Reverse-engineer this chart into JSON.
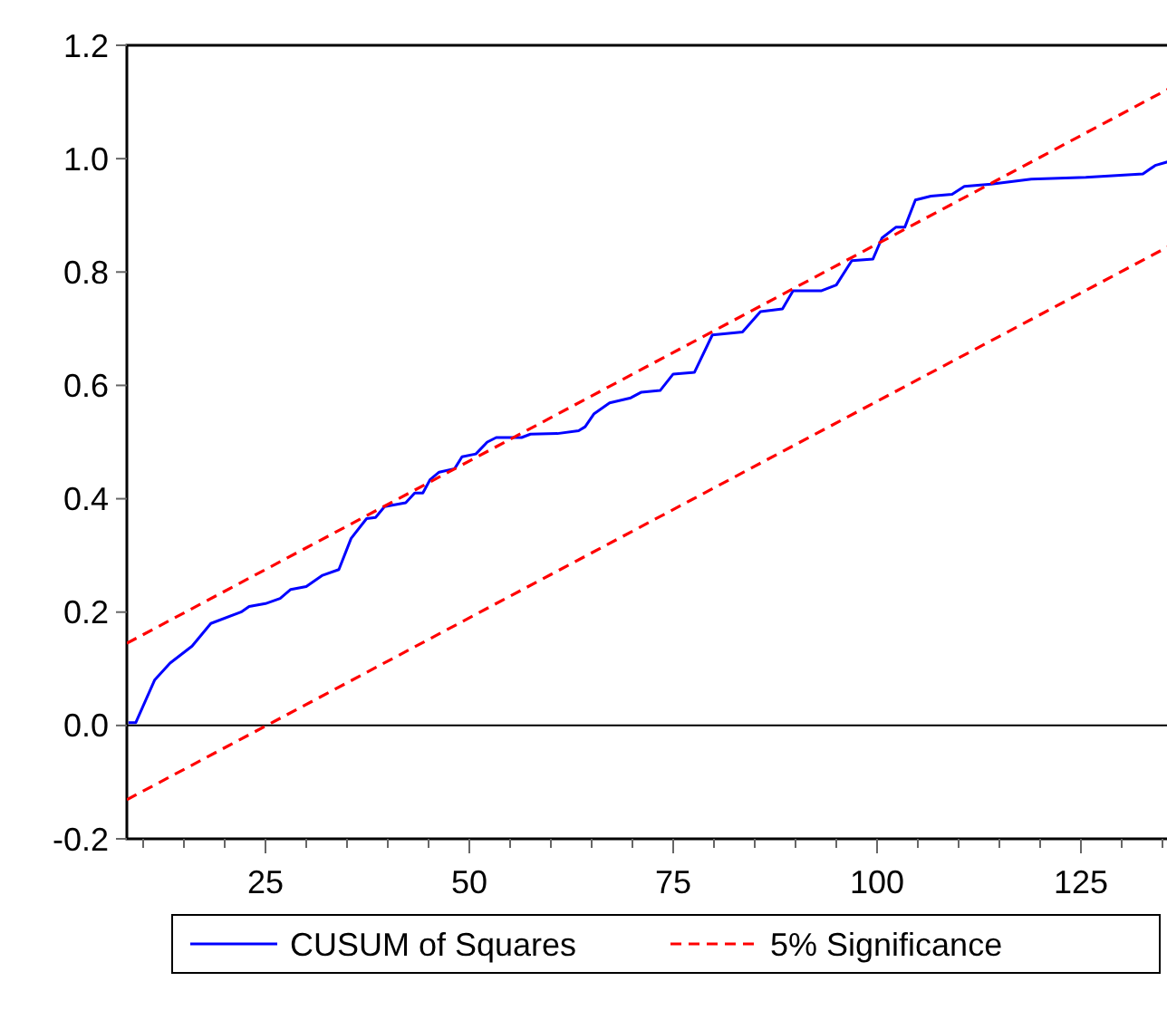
{
  "chart_data": {
    "type": "line",
    "xlim": [
      8,
      136
    ],
    "ylim": [
      -0.2,
      1.2
    ],
    "xticks": [
      {
        "value": 10,
        "label": null
      },
      {
        "value": 15,
        "label": null
      },
      {
        "value": 20,
        "label": null
      },
      25,
      {
        "value": 30,
        "label": null
      },
      {
        "value": 35,
        "label": null
      },
      {
        "value": 40,
        "label": null
      },
      {
        "value": 45,
        "label": null
      },
      50,
      {
        "value": 55,
        "label": null
      },
      {
        "value": 60,
        "label": null
      },
      {
        "value": 65,
        "label": null
      },
      {
        "value": 70,
        "label": null
      },
      75,
      {
        "value": 80,
        "label": null
      },
      {
        "value": 85,
        "label": null
      },
      {
        "value": 90,
        "label": null
      },
      {
        "value": 95,
        "label": null
      },
      100,
      {
        "value": 105,
        "label": null
      },
      {
        "value": 110,
        "label": null
      },
      {
        "value": 115,
        "label": null
      },
      {
        "value": 120,
        "label": null
      },
      125,
      {
        "value": 130,
        "label": null
      },
      {
        "value": 135,
        "label": null
      }
    ],
    "yticks": [
      {
        "value": -0.2,
        "label": "-0.2"
      },
      {
        "value": 0,
        "label": "0.0"
      },
      {
        "value": 0.2,
        "label": "0.2"
      },
      {
        "value": 0.4,
        "label": "0.4"
      },
      {
        "value": 0.6,
        "label": "0.6"
      },
      {
        "value": 0.8,
        "label": "0.8"
      },
      {
        "value": 1,
        "label": "1.0"
      },
      {
        "value": 1.2,
        "label": "1.2"
      }
    ],
    "grid": false,
    "legend": "bottom",
    "marker": "none",
    "ref_lines": [
      {
        "axis": "y",
        "value": 0,
        "color": "#000000"
      }
    ],
    "series": [
      {
        "name": "CUSUM of Squares",
        "color": "#0000ff",
        "line_style": "solid",
        "x": [
          8.2,
          9.1,
          11.4,
          13.3,
          16,
          18.3,
          22,
          23,
          25,
          26.8,
          28.1,
          30,
          32,
          34,
          35.5,
          37.4,
          38.5,
          39.6,
          42.2,
          43.3,
          44.3,
          45.2,
          46.3,
          48.2,
          49.1,
          50.8,
          52.2,
          53.3,
          56.4,
          57.5,
          60.8,
          63.4,
          64.2,
          65.3,
          67.2,
          69.8,
          71.1,
          73.4,
          75,
          77.6,
          79.8,
          83.5,
          85.7,
          88.4,
          89.7,
          93.2,
          95,
          96.9,
          99.5,
          100.6,
          102.3,
          103.4,
          104.7,
          106.6,
          109.2,
          110.7,
          114,
          118.9,
          125.6,
          132.6,
          134.1,
          136
        ],
        "values": [
          0.005,
          0.005,
          0.08,
          0.11,
          0.14,
          0.18,
          0.2,
          0.21,
          0.215,
          0.224,
          0.24,
          0.245,
          0.265,
          0.275,
          0.33,
          0.365,
          0.367,
          0.386,
          0.393,
          0.41,
          0.41,
          0.434,
          0.447,
          0.453,
          0.474,
          0.479,
          0.5,
          0.508,
          0.508,
          0.514,
          0.515,
          0.52,
          0.527,
          0.55,
          0.569,
          0.578,
          0.588,
          0.591,
          0.62,
          0.623,
          0.689,
          0.694,
          0.73,
          0.735,
          0.767,
          0.767,
          0.777,
          0.82,
          0.823,
          0.86,
          0.879,
          0.879,
          0.927,
          0.934,
          0.937,
          0.951,
          0.955,
          0.964,
          0.967,
          0.973,
          0.988,
          0.996
        ]
      },
      {
        "name": "5% Significance",
        "color": "#ff0000",
        "line_style": "dashed",
        "x": [
          8,
          136
        ],
        "values": [
          0.145,
          1.125
        ]
      },
      {
        "color": "#ff0000",
        "line_style": "dashed",
        "x": [
          8,
          136
        ],
        "values": [
          -0.131,
          0.847
        ]
      }
    ]
  }
}
